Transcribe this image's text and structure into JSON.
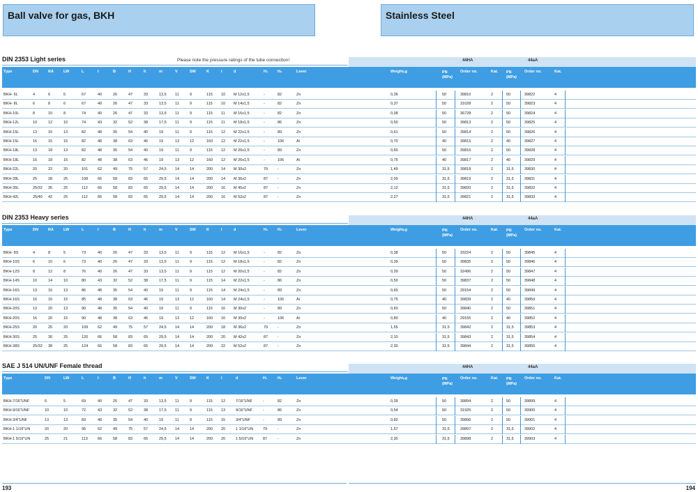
{
  "header": {
    "left_title": "Ball valve for gas, BKH",
    "right_title": "Stainless Steel"
  },
  "strip": {
    "group_a": "44HA",
    "group_b": "44aA"
  },
  "columns_full": [
    "Type",
    "DN",
    "RA",
    "LW",
    "L",
    "l",
    "B",
    "H",
    "h",
    "m",
    "V",
    "SW",
    "K",
    "l",
    "d",
    "H₁",
    "H₂",
    "Lever",
    "Weightₖg",
    "PN (MPa)",
    "Order no.",
    "Kat.",
    "PN (MPa)",
    "Order no.",
    "Kat."
  ],
  "columns_sae": [
    "Type",
    "DN",
    "LW",
    "L",
    "l",
    "B",
    "H",
    "h",
    "m",
    "V",
    "SW",
    "K",
    "l",
    "d",
    "H₁",
    "H₂",
    "Lever",
    "Weightₖg",
    "PN (MPa)",
    "Order no.",
    "Kat.",
    "PN (MPa)",
    "Order no.",
    "Kat."
  ],
  "sections": [
    {
      "title": "DIN 2353 Light series",
      "note": "Please note the pressure ratings of the tube connection!",
      "rows": [
        [
          "BKH- 6L",
          "4",
          "6",
          "5",
          "67",
          "40",
          "26",
          "47",
          "33",
          "13,5",
          "11",
          "9",
          "115",
          "10",
          "M 12x1,5",
          "-",
          "82",
          "Zn",
          "0,36",
          "50",
          "39810",
          "2",
          "50",
          "39822",
          "4"
        ],
        [
          "BKH- 8L",
          "6",
          "8",
          "6",
          "67",
          "40",
          "26",
          "47",
          "33",
          "13,5",
          "11",
          "9",
          "115",
          "10",
          "M 14x1,5",
          "-",
          "82",
          "Zn",
          "0,37",
          "50",
          "31028",
          "2",
          "50",
          "39823",
          "4"
        ],
        [
          "BKH-10L",
          "8",
          "10",
          "8",
          "74",
          "40",
          "26",
          "47",
          "33",
          "13,5",
          "11",
          "9",
          "115",
          "11",
          "M 16x1,5",
          "-",
          "82",
          "Zn",
          "0,38",
          "50",
          "36728",
          "2",
          "50",
          "39824",
          "4"
        ],
        [
          "BKH-12L",
          "10",
          "12",
          "10",
          "74",
          "43",
          "32",
          "52",
          "38",
          "17,5",
          "11",
          "9",
          "115",
          "11",
          "M 18x1,5",
          "-",
          "86",
          "Zn",
          "0,50",
          "50",
          "39813",
          "2",
          "50",
          "39825",
          "4"
        ],
        [
          "BKH-15L",
          "13",
          "15",
          "13",
          "82",
          "48",
          "35",
          "54",
          "40",
          "19",
          "11",
          "9",
          "115",
          "12",
          "M 22x1,5",
          "-",
          "89",
          "Zn",
          "0,61",
          "50",
          "39814",
          "2",
          "50",
          "39826",
          "4"
        ],
        [
          "BKH-15L",
          "16",
          "15",
          "15",
          "82",
          "48",
          "38",
          "63",
          "46",
          "19",
          "13",
          "12",
          "160",
          "12",
          "M 22x1,5",
          "-",
          "106",
          "Al",
          "0,70",
          "40",
          "39815",
          "2",
          "40",
          "39827",
          "4"
        ],
        [
          "BKH-18L",
          "13",
          "18",
          "13",
          "82",
          "48",
          "35",
          "54",
          "40",
          "19",
          "11",
          "9",
          "115",
          "12",
          "M 26x1,5",
          "-",
          "89",
          "Zn",
          "0,60",
          "50",
          "39816",
          "2",
          "50",
          "39828",
          "4"
        ],
        [
          "BKH-18L",
          "16",
          "18",
          "15",
          "82",
          "48",
          "38",
          "63",
          "46",
          "19",
          "13",
          "12",
          "160",
          "12",
          "M 26x1,5",
          "-",
          "106",
          "Al",
          "0,75",
          "40",
          "39817",
          "2",
          "40",
          "39829",
          "4"
        ],
        [
          "BKH-22L",
          "20",
          "22",
          "20",
          "101",
          "62",
          "49",
          "75",
          "57",
          "24,5",
          "14",
          "14",
          "200",
          "14",
          "M 30x2",
          "79",
          "-",
          "Zn",
          "1,49",
          "31,5",
          "39818",
          "2",
          "31,5",
          "39830",
          "4"
        ],
        [
          "BKH-28L",
          "25",
          "28",
          "25",
          "108",
          "66",
          "58",
          "83",
          "65",
          "29,5",
          "14",
          "14",
          "200",
          "14",
          "M 36x2",
          "87",
          "-",
          "Zn",
          "2,00",
          "31,5",
          "39819",
          "2",
          "31,5",
          "39831",
          "4"
        ],
        [
          "BKH-35L",
          "25/32",
          "35",
          "25",
          "112",
          "66",
          "58",
          "83",
          "65",
          "29,5",
          "14",
          "14",
          "200",
          "16",
          "M 45x2",
          "87",
          "-",
          "Zn",
          "2,12",
          "31,5",
          "39820",
          "2",
          "31,5",
          "39832",
          "4"
        ],
        [
          "BKH-42L",
          "25/40",
          "42",
          "25",
          "112",
          "66",
          "58",
          "83",
          "65",
          "29,5",
          "14",
          "14",
          "200",
          "16",
          "M 52x2",
          "87",
          "-",
          "Zn",
          "2,27",
          "31,5",
          "39821",
          "2",
          "31,5",
          "39833",
          "4"
        ]
      ]
    },
    {
      "title": "DIN 2353 Heavy series",
      "rows": [
        [
          "BKH- 8S",
          "4",
          "8",
          "5",
          "73",
          "40",
          "26",
          "47",
          "33",
          "13,5",
          "11",
          "9",
          "115",
          "12",
          "M 16x1,5",
          "-",
          "82",
          "Zn",
          "0,38",
          "50",
          "33224",
          "2",
          "50",
          "39845",
          "4"
        ],
        [
          "BKH-10S",
          "6",
          "10",
          "6",
          "73",
          "40",
          "26",
          "47",
          "33",
          "13,5",
          "11",
          "9",
          "115",
          "12",
          "M 18x1,5",
          "-",
          "82",
          "Zn",
          "0,39",
          "50",
          "39835",
          "2",
          "50",
          "39846",
          "4"
        ],
        [
          "BKH-12S",
          "8",
          "12",
          "8",
          "76",
          "40",
          "26",
          "47",
          "33",
          "13,5",
          "11",
          "9",
          "115",
          "12",
          "M 20x1,5",
          "-",
          "82",
          "Zn",
          "0,39",
          "50",
          "32496",
          "2",
          "50",
          "39847",
          "4"
        ],
        [
          "BKH-14S",
          "10",
          "14",
          "10",
          "80",
          "43",
          "32",
          "52",
          "38",
          "17,5",
          "11",
          "9",
          "115",
          "14",
          "M 22x1,5",
          "-",
          "86",
          "Zn",
          "0,50",
          "50",
          "39837",
          "2",
          "50",
          "39848",
          "4"
        ],
        [
          "BKH-16S",
          "13",
          "16",
          "13",
          "86",
          "48",
          "35",
          "54",
          "40",
          "19",
          "11",
          "9",
          "115",
          "14",
          "M 24x1,5",
          "-",
          "89",
          "Zn",
          "0,60",
          "50",
          "29154",
          "2",
          "50",
          "39849",
          "4"
        ],
        [
          "BKH-16S",
          "16",
          "16",
          "15",
          "85",
          "48",
          "38",
          "63",
          "46",
          "19",
          "13",
          "12",
          "160",
          "14",
          "M 24x1,5",
          "-",
          "106",
          "Al",
          "0,75",
          "40",
          "39839",
          "2",
          "40",
          "39850",
          "4"
        ],
        [
          "BKH-20S",
          "13",
          "20",
          "13",
          "90",
          "48",
          "35",
          "54",
          "40",
          "19",
          "11",
          "9",
          "115",
          "16",
          "M 30x2",
          "-",
          "89",
          "Zn",
          "0,60",
          "50",
          "39840",
          "2",
          "50",
          "39851",
          "4"
        ],
        [
          "BKH-20S",
          "16",
          "20",
          "15",
          "90",
          "48",
          "38",
          "63",
          "46",
          "19",
          "13",
          "12",
          "160",
          "16",
          "M 30x2",
          "-",
          "106",
          "Al",
          "0,80",
          "40",
          "29155",
          "2",
          "40",
          "39852",
          "4"
        ],
        [
          "BKH-25S",
          "20",
          "25",
          "20",
          "109",
          "62",
          "49",
          "75",
          "57",
          "24,5",
          "14",
          "14",
          "200",
          "18",
          "M 36x2",
          "79",
          "-",
          "Zn",
          "1,55",
          "31,5",
          "39842",
          "2",
          "31,5",
          "39853",
          "4"
        ],
        [
          "BKH-30S",
          "25",
          "30",
          "25",
          "120",
          "66",
          "58",
          "83",
          "65",
          "29,5",
          "14",
          "14",
          "200",
          "20",
          "M 42x2",
          "87",
          "-",
          "Zn",
          "2,10",
          "31,5",
          "39843",
          "2",
          "31,5",
          "39854",
          "4"
        ],
        [
          "BKH-38S",
          "25/32",
          "38",
          "25",
          "124",
          "66",
          "58",
          "83",
          "65",
          "29,5",
          "14",
          "14",
          "200",
          "22",
          "M 52x2",
          "87",
          "-",
          "Zn",
          "2,30",
          "31,5",
          "39844",
          "2",
          "31,5",
          "39855",
          "4"
        ]
      ]
    },
    {
      "title": "SAE J 514 UN/UNF Female thread",
      "rows": [
        [
          "BKH-7/16\"UNF",
          "6",
          "5",
          "69",
          "40",
          "26",
          "47",
          "33",
          "13,5",
          "11",
          "9",
          "115",
          "12",
          "7/16\"UNF",
          "-",
          "82",
          "Zn",
          "0,39",
          "50",
          "39894",
          "2",
          "50",
          "39899",
          "4"
        ],
        [
          "BKH-9/16\"UNF",
          "10",
          "10",
          "72",
          "43",
          "32",
          "52",
          "38",
          "17,5",
          "11",
          "9",
          "115",
          "13",
          "9/16\"UNF",
          "-",
          "86",
          "Zn",
          "0,54",
          "50",
          "31925",
          "2",
          "50",
          "39900",
          "4"
        ],
        [
          "BKH-3/4\"UNF",
          "13",
          "13",
          "83",
          "48",
          "35",
          "54",
          "40",
          "19",
          "11",
          "9",
          "115",
          "15",
          "3/4\"UNF",
          "-",
          "89",
          "Zn",
          "0,82",
          "50",
          "39896",
          "2",
          "50",
          "39901",
          "4"
        ],
        [
          "BKH-1 1/16\"UN",
          "20",
          "20",
          "95",
          "62",
          "49",
          "75",
          "57",
          "24,5",
          "14",
          "14",
          "200",
          "20",
          "1 1/16\"UN",
          "79",
          "-",
          "Zn",
          "1,57",
          "31,5",
          "39897",
          "2",
          "31,5",
          "39902",
          "4"
        ],
        [
          "BKH-1 5/16\"UN",
          "25",
          "21",
          "113",
          "66",
          "58",
          "83",
          "65",
          "29,5",
          "14",
          "14",
          "200",
          "20",
          "1 5/16\"UN",
          "87",
          "-",
          "Zn",
          "2,30",
          "31,5",
          "39898",
          "2",
          "31,5",
          "39903",
          "4"
        ]
      ]
    }
  ],
  "footer": {
    "page_left": "193",
    "page_right": "194"
  }
}
